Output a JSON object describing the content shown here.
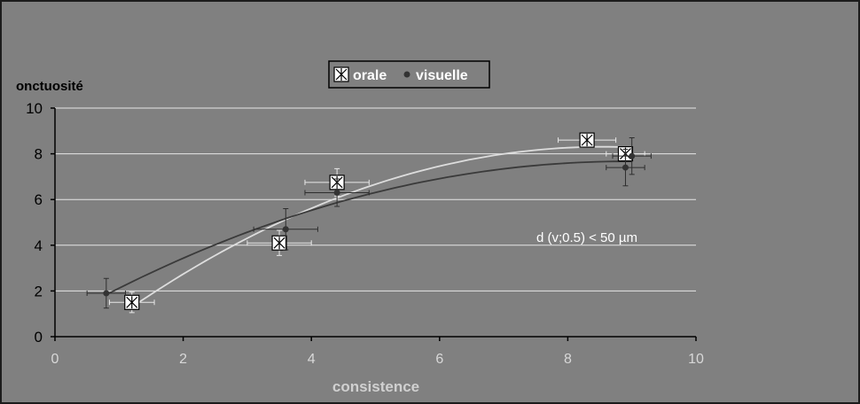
{
  "chart_data": {
    "type": "scatter",
    "title": "",
    "xlabel": "consistence",
    "ylabel": "onctuosité",
    "xlim": [
      0,
      10
    ],
    "ylim": [
      0,
      10
    ],
    "xticks": [
      0,
      2,
      4,
      6,
      8,
      10
    ],
    "yticks": [
      0,
      2,
      4,
      6,
      8,
      10
    ],
    "grid": "horizontal",
    "legend_position": "top-center",
    "annotation": "d (v;0.5) < 50 µm",
    "series": [
      {
        "name": "orale",
        "marker": "boxed-asterisk",
        "color": "#ffffff",
        "trendline": "polynomial",
        "trend_color": "#dddddd",
        "points": [
          {
            "x": 1.2,
            "y": 1.5,
            "xerr": 0.35,
            "yerr": 0.45
          },
          {
            "x": 3.5,
            "y": 4.1,
            "xerr": 0.5,
            "yerr": 0.55
          },
          {
            "x": 4.4,
            "y": 6.75,
            "xerr": 0.5,
            "yerr": 0.6
          },
          {
            "x": 8.3,
            "y": 8.6,
            "xerr": 0.45,
            "yerr": 0.3
          },
          {
            "x": 8.9,
            "y": 8.0,
            "xerr": 0.3,
            "yerr": 0.3
          }
        ]
      },
      {
        "name": "visuelle",
        "marker": "dot",
        "color": "#333333",
        "trendline": "polynomial",
        "trend_color": "#3a3a3a",
        "points": [
          {
            "x": 0.8,
            "y": 1.9,
            "xerr": 0.3,
            "yerr": 0.65
          },
          {
            "x": 3.6,
            "y": 4.7,
            "xerr": 0.5,
            "yerr": 0.9
          },
          {
            "x": 4.4,
            "y": 6.3,
            "xerr": 0.5,
            "yerr": 0.6
          },
          {
            "x": 8.9,
            "y": 7.4,
            "xerr": 0.3,
            "yerr": 0.8
          },
          {
            "x": 9.0,
            "y": 7.9,
            "xerr": 0.3,
            "yerr": 0.8
          }
        ]
      }
    ]
  }
}
